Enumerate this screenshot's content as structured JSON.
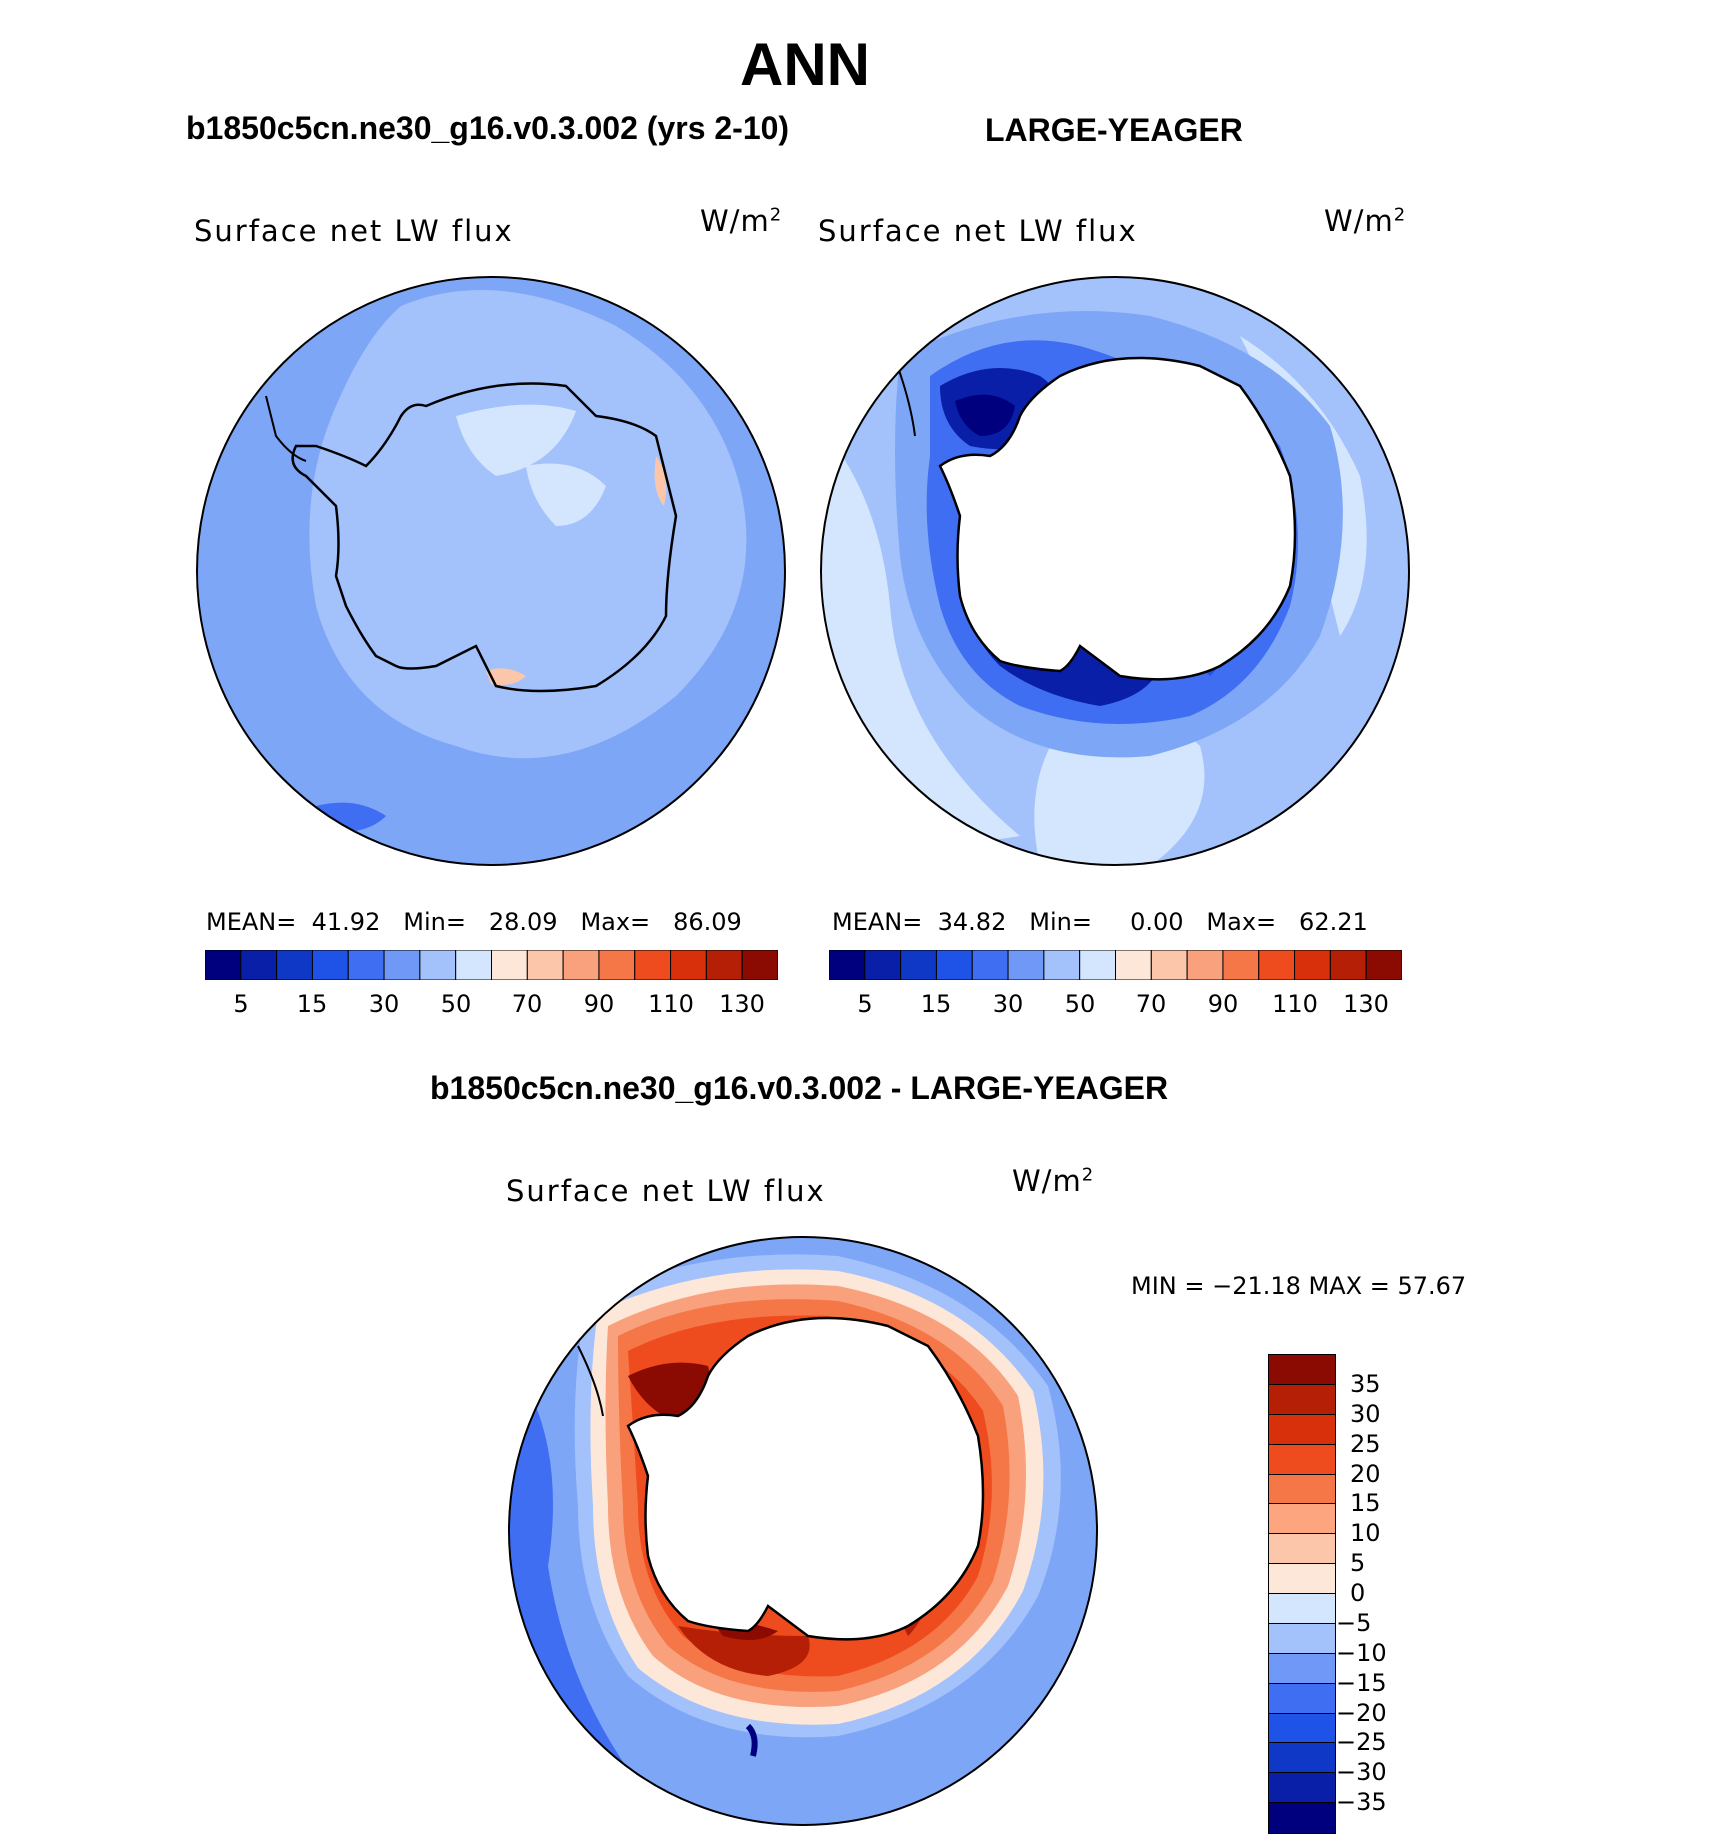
{
  "title": "ANN",
  "panels": [
    {
      "case_title": "b1850c5cn.ne30_g16.v0.3.002 (yrs 2-10)",
      "variable": "Surface net LW flux",
      "units_base": "W/m",
      "units_sup": "2",
      "stats": {
        "mean_label": "MEAN=",
        "mean": "41.92",
        "min_label": "Min=",
        "min": "28.09",
        "max_label": "Max=",
        "max": "86.09"
      }
    },
    {
      "case_title": "LARGE-YEAGER",
      "variable": "Surface net LW flux",
      "units_base": "W/m",
      "units_sup": "2",
      "stats": {
        "mean_label": "MEAN=",
        "mean": "34.82",
        "min_label": "Min=",
        "min": "0.00",
        "max_label": "Max=",
        "max": "62.21"
      }
    }
  ],
  "diff_panel": {
    "case_title": "b1850c5cn.ne30_g16.v0.3.002 - LARGE-YEAGER",
    "variable": "Surface net LW flux",
    "units_base": "W/m",
    "units_sup": "2",
    "minmax": "MIN = −21.18 MAX =  57.67"
  },
  "colorbar_top": {
    "colors": [
      "#00007f",
      "#0a1fa8",
      "#0f38c6",
      "#1f52e6",
      "#3f6ef2",
      "#7098f7",
      "#a3c1fb",
      "#d4e6fd",
      "#fde7d8",
      "#fcc6aa",
      "#f9a07d",
      "#f57647",
      "#ee4c1e",
      "#d8300b",
      "#b51f06",
      "#8b0a02"
    ],
    "labels": [
      "5",
      "15",
      "30",
      "50",
      "70",
      "90",
      "110",
      "130"
    ]
  },
  "colorbar_diff": {
    "colors": [
      "#8b0a02",
      "#b51f06",
      "#d8300b",
      "#ee4c1e",
      "#f57647",
      "#fca57f",
      "#fcc6aa",
      "#fde7d8",
      "#d4e6fd",
      "#a3c1fb",
      "#7098f7",
      "#3f6ef2",
      "#1f52e6",
      "#0f38c6",
      "#0a1fa8",
      "#00007f"
    ],
    "labels": [
      "35",
      "30",
      "25",
      "20",
      "15",
      "10",
      "5",
      "0",
      "−5",
      "−10",
      "−15",
      "−20",
      "−25",
      "−30",
      "−35"
    ]
  },
  "map_colors": {
    "ocean_base": "#7ea6f7",
    "mid_blue": "#a3c1fb",
    "pale_blue": "#d4e6fd",
    "dark_blue": "#1f52e6",
    "deep_blue": "#0a1fa8",
    "navy": "#00007f",
    "peach": "#fcc6aa",
    "pale_peach": "#fde7d8",
    "orange": "#f57647",
    "red": "#ee4c1e",
    "dark_red": "#b51f06",
    "maroon": "#8b0a02",
    "land_white": "#ffffff"
  }
}
